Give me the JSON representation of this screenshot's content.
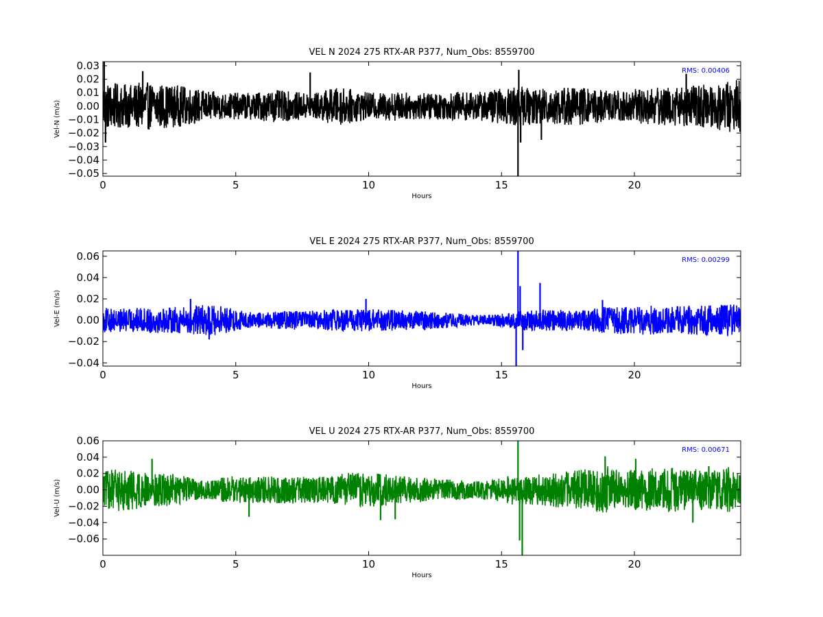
{
  "chart_data": [
    {
      "type": "line",
      "title": "VEL N 2024 275 RTX-AR  P377, Num_Obs: 8559700",
      "xlabel": "Hours",
      "ylabel": "Vel-N (m/s)",
      "xlim": [
        0,
        24
      ],
      "ylim": [
        -0.052,
        0.033
      ],
      "x_ticks": [
        0,
        5,
        10,
        15,
        20
      ],
      "y_ticks": [
        -0.05,
        -0.04,
        -0.03,
        -0.02,
        -0.01,
        0.0,
        0.01,
        0.02,
        0.03
      ],
      "y_tick_labels": [
        "−0.05",
        "−0.04",
        "−0.03",
        "−0.02",
        "−0.01",
        "0.00",
        "0.01",
        "0.02",
        "0.03"
      ],
      "rms_label": "RMS:  0.00406",
      "series_color": "#000000",
      "rms_color": "#0000ff",
      "envelope": {
        "hours": [
          0,
          0.5,
          1,
          1.5,
          2,
          2.5,
          3,
          3.5,
          4,
          4.5,
          5,
          5.5,
          6,
          6.5,
          7,
          7.5,
          8,
          8.5,
          9,
          9.5,
          10,
          10.5,
          11,
          11.5,
          12,
          12.5,
          13,
          13.5,
          14,
          14.5,
          15,
          15.5,
          16,
          16.5,
          17,
          17.5,
          18,
          18.5,
          19,
          19.5,
          20,
          20.5,
          21,
          21.5,
          22,
          22.5,
          23,
          23.5,
          24
        ],
        "amplitude": [
          0.018,
          0.017,
          0.016,
          0.018,
          0.017,
          0.016,
          0.015,
          0.013,
          0.011,
          0.01,
          0.01,
          0.01,
          0.011,
          0.012,
          0.011,
          0.01,
          0.01,
          0.013,
          0.014,
          0.012,
          0.01,
          0.01,
          0.011,
          0.01,
          0.01,
          0.01,
          0.01,
          0.011,
          0.01,
          0.012,
          0.013,
          0.015,
          0.014,
          0.013,
          0.014,
          0.015,
          0.014,
          0.013,
          0.012,
          0.012,
          0.013,
          0.014,
          0.014,
          0.015,
          0.015,
          0.016,
          0.017,
          0.019,
          0.02
        ]
      },
      "spikes": [
        {
          "hour": 0.05,
          "value": 0.033
        },
        {
          "hour": 0.1,
          "value": -0.027
        },
        {
          "hour": 1.5,
          "value": 0.026
        },
        {
          "hour": 7.8,
          "value": 0.025
        },
        {
          "hour": 15.62,
          "value": -0.052
        },
        {
          "hour": 15.65,
          "value": 0.027
        },
        {
          "hour": 15.72,
          "value": -0.027
        },
        {
          "hour": 16.5,
          "value": -0.025
        },
        {
          "hour": 21.95,
          "value": 0.024
        }
      ]
    },
    {
      "type": "line",
      "title": "VEL E 2024 275 RTX-AR  P377, Num_Obs: 8559700",
      "xlabel": "Hours",
      "ylabel": "Vel-E (m/s)",
      "xlim": [
        0,
        24
      ],
      "ylim": [
        -0.043,
        0.065
      ],
      "x_ticks": [
        0,
        5,
        10,
        15,
        20
      ],
      "y_ticks": [
        -0.04,
        -0.02,
        0.0,
        0.02,
        0.04,
        0.06
      ],
      "y_tick_labels": [
        "−0.04",
        "−0.02",
        "0.00",
        "0.02",
        "0.04",
        "0.06"
      ],
      "rms_label": "RMS:  0.00299",
      "series_color": "#0000ff",
      "rms_color": "#0000ff",
      "envelope": {
        "hours": [
          0,
          0.5,
          1,
          1.5,
          2,
          2.5,
          3,
          3.5,
          4,
          4.5,
          5,
          5.5,
          6,
          6.5,
          7,
          7.5,
          8,
          8.5,
          9,
          9.5,
          10,
          10.5,
          11,
          11.5,
          12,
          12.5,
          13,
          13.5,
          14,
          14.5,
          15,
          15.5,
          16,
          16.5,
          17,
          17.5,
          18,
          18.5,
          19,
          19.5,
          20,
          20.5,
          21,
          21.5,
          22,
          22.5,
          23,
          23.5,
          24
        ],
        "amplitude": [
          0.012,
          0.011,
          0.011,
          0.012,
          0.012,
          0.012,
          0.013,
          0.014,
          0.015,
          0.013,
          0.01,
          0.008,
          0.007,
          0.008,
          0.009,
          0.009,
          0.009,
          0.01,
          0.01,
          0.011,
          0.011,
          0.01,
          0.01,
          0.009,
          0.009,
          0.008,
          0.007,
          0.006,
          0.005,
          0.005,
          0.006,
          0.008,
          0.01,
          0.01,
          0.01,
          0.01,
          0.01,
          0.011,
          0.013,
          0.013,
          0.013,
          0.014,
          0.013,
          0.013,
          0.014,
          0.014,
          0.014,
          0.015,
          0.015
        ]
      },
      "spikes": [
        {
          "hour": 3.3,
          "value": 0.02
        },
        {
          "hour": 4.0,
          "value": -0.018
        },
        {
          "hour": 9.9,
          "value": 0.02
        },
        {
          "hour": 15.55,
          "value": -0.043
        },
        {
          "hour": 15.62,
          "value": 0.065
        },
        {
          "hour": 15.7,
          "value": 0.032
        },
        {
          "hour": 15.8,
          "value": -0.028
        },
        {
          "hour": 16.45,
          "value": 0.035
        },
        {
          "hour": 18.8,
          "value": 0.019
        }
      ]
    },
    {
      "type": "line",
      "title": "VEL U 2024 275 RTX-AR  P377, Num_Obs: 8559700",
      "xlabel": "Hours",
      "ylabel": "Vel-U (m/s)",
      "xlim": [
        0,
        24
      ],
      "ylim": [
        -0.08,
        0.06
      ],
      "x_ticks": [
        0,
        5,
        10,
        15,
        20
      ],
      "y_ticks": [
        -0.06,
        -0.04,
        -0.02,
        0.0,
        0.02,
        0.04,
        0.06
      ],
      "y_tick_labels": [
        "−0.06",
        "−0.04",
        "−0.02",
        "0.00",
        "0.02",
        "0.04",
        "0.06"
      ],
      "rms_label": "RMS:  0.00671",
      "series_color": "#008000",
      "rms_color": "#0000ff",
      "envelope": {
        "hours": [
          0,
          0.5,
          1,
          1.5,
          2,
          2.5,
          3,
          3.5,
          4,
          4.5,
          5,
          5.5,
          6,
          6.5,
          7,
          7.5,
          8,
          8.5,
          9,
          9.5,
          10,
          10.5,
          11,
          11.5,
          12,
          12.5,
          13,
          13.5,
          14,
          14.5,
          15,
          15.5,
          16,
          16.5,
          17,
          17.5,
          18,
          18.5,
          19,
          19.5,
          20,
          20.5,
          21,
          21.5,
          22,
          22.5,
          23,
          23.5,
          24
        ],
        "amplitude": [
          0.022,
          0.026,
          0.025,
          0.022,
          0.02,
          0.02,
          0.018,
          0.013,
          0.011,
          0.016,
          0.017,
          0.016,
          0.016,
          0.017,
          0.017,
          0.016,
          0.016,
          0.017,
          0.02,
          0.022,
          0.021,
          0.02,
          0.018,
          0.016,
          0.015,
          0.014,
          0.013,
          0.012,
          0.011,
          0.013,
          0.015,
          0.019,
          0.02,
          0.019,
          0.021,
          0.023,
          0.025,
          0.027,
          0.029,
          0.025,
          0.025,
          0.026,
          0.028,
          0.027,
          0.027,
          0.026,
          0.027,
          0.029,
          0.018
        ]
      },
      "spikes": [
        {
          "hour": 1.85,
          "value": 0.038
        },
        {
          "hour": 5.5,
          "value": -0.033
        },
        {
          "hour": 10.45,
          "value": -0.037
        },
        {
          "hour": 11.0,
          "value": -0.036
        },
        {
          "hour": 15.62,
          "value": 0.06
        },
        {
          "hour": 15.68,
          "value": -0.062
        },
        {
          "hour": 15.78,
          "value": -0.08
        },
        {
          "hour": 18.9,
          "value": 0.041
        },
        {
          "hour": 20.05,
          "value": 0.038
        },
        {
          "hour": 22.2,
          "value": -0.04
        },
        {
          "hour": 22.8,
          "value": 0.029
        }
      ]
    }
  ]
}
